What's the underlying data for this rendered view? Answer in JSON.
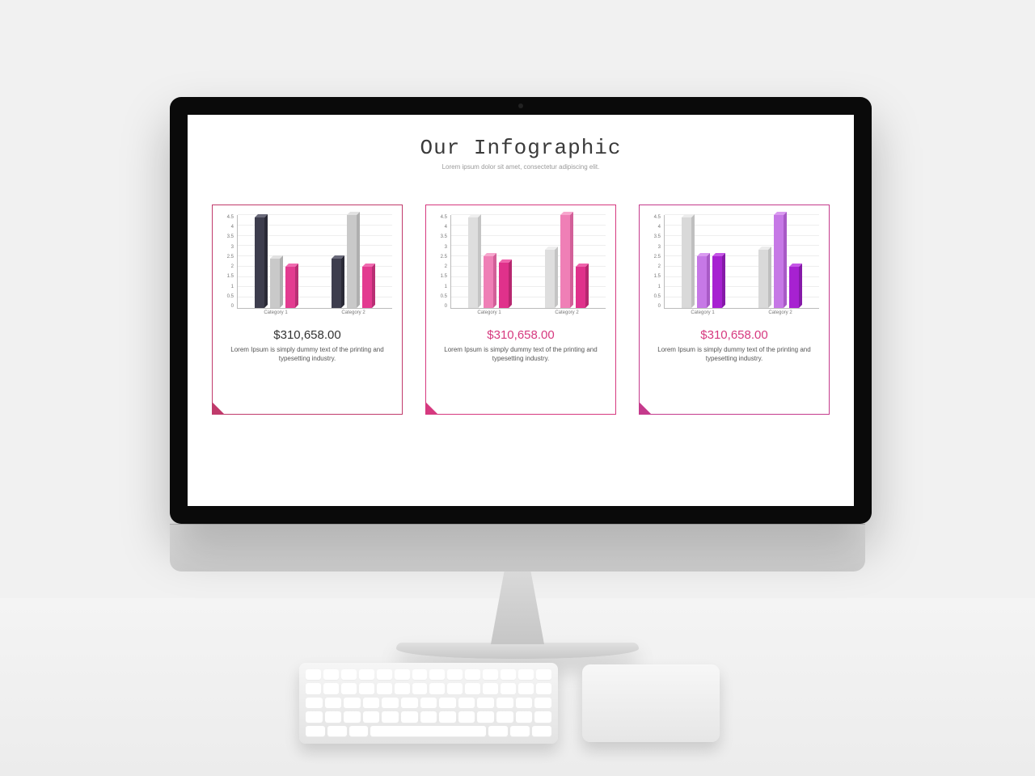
{
  "header": {
    "title": "Our Infographic",
    "subtitle": "Lorem ipsum dolor sit amet, consectetur adipiscing elit.",
    "title_fontsize": 26,
    "title_font": "Courier New",
    "title_color": "#3a3a3a",
    "subtitle_fontsize": 8,
    "subtitle_color": "#9a9a9a"
  },
  "chart_axis": {
    "ymax": 4.5,
    "ymin": 0,
    "yticks": [
      4.5,
      4,
      3.5,
      3,
      2.5,
      2,
      1.5,
      1,
      0.5,
      0
    ],
    "categories": [
      "Category 1",
      "Category 2"
    ],
    "grid_color": "#eeeeee",
    "axis_color": "#bbbbbb",
    "tick_fontsize": 6,
    "tick_color": "#777777"
  },
  "cards": [
    {
      "border_color": "#c03a6b",
      "corner_color": "#c03a6b",
      "amount": "$310,658.00",
      "amount_color": "#333333",
      "caption": "Lorem Ipsum is simply dummy text of the printing and typesetting industry.",
      "series_colors": {
        "s1": {
          "front": "#3d3d4d",
          "side": "#2a2a36",
          "top": "#6a6a7a"
        },
        "s2": {
          "front": "#c9c9c9",
          "side": "#afafaf",
          "top": "#e2e2e2"
        },
        "s3": {
          "front": "#e33b90",
          "side": "#b92f74",
          "top": "#f06bb0"
        }
      },
      "data": [
        {
          "label": "Category 1",
          "values": [
            4.4,
            2.4,
            2.0
          ]
        },
        {
          "label": "Category 2",
          "values": [
            2.4,
            4.5,
            2.0
          ]
        }
      ]
    },
    {
      "border_color": "#d6397f",
      "corner_color": "#d6397f",
      "amount": "$310,658.00",
      "amount_color": "#d6397f",
      "caption": "Lorem Ipsum is simply dummy text of the printing and typesetting industry.",
      "series_colors": {
        "s1": {
          "front": "#dedede",
          "side": "#c4c4c4",
          "top": "#efefef"
        },
        "s2": {
          "front": "#ef7fb6",
          "side": "#d25f98",
          "top": "#f7a6cd"
        },
        "s3": {
          "front": "#e0318b",
          "side": "#b6276f",
          "top": "#ef63ac"
        }
      },
      "data": [
        {
          "label": "Category 1",
          "values": [
            4.4,
            2.5,
            2.2
          ]
        },
        {
          "label": "Category 2",
          "values": [
            2.8,
            4.5,
            2.0
          ]
        }
      ]
    },
    {
      "border_color": "#c53a8c",
      "corner_color": "#c53a8c",
      "amount": "$310,658.00",
      "amount_color": "#d6397f",
      "caption": "Lorem Ipsum is simply dummy text of the printing and typesetting industry.",
      "series_colors": {
        "s1": {
          "front": "#d9d9d9",
          "side": "#bfbfbf",
          "top": "#ececec"
        },
        "s2": {
          "front": "#c678e6",
          "side": "#a85ac6",
          "top": "#d99af0"
        },
        "s3": {
          "front": "#a721d1",
          "side": "#851aa8",
          "top": "#c556e6"
        }
      },
      "data": [
        {
          "label": "Category 1",
          "values": [
            4.4,
            2.5,
            2.5
          ]
        },
        {
          "label": "Category 2",
          "values": [
            2.8,
            4.5,
            2.0
          ]
        }
      ]
    }
  ],
  "screen_bg": "#ffffff",
  "page_bg": "#f1f1f1"
}
